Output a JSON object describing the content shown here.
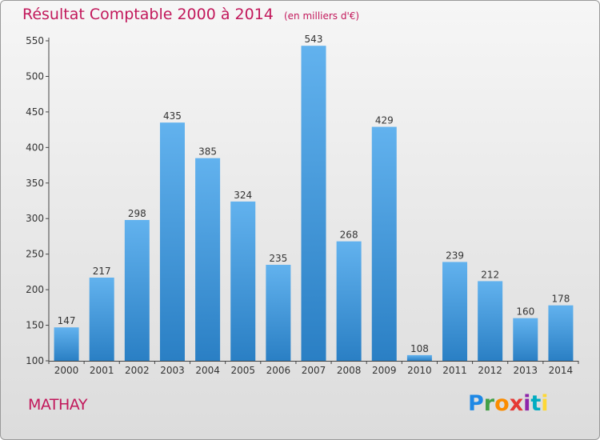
{
  "header": {
    "title": "Résultat Comptable 2000 à 2014",
    "unit": "(en milliers d'€)"
  },
  "commune": "MATHAY",
  "logo": {
    "text": "Proxiti"
  },
  "colors": {
    "title": "#c2185b",
    "bar_light": "#62b2ee",
    "bar_dark": "#2a7fc4",
    "axis": "#444444"
  },
  "chart_data": {
    "type": "bar",
    "title": "Résultat Comptable 2000 à 2014",
    "subtitle": "(en milliers d'€)",
    "categories": [
      "2000",
      "2001",
      "2002",
      "2003",
      "2004",
      "2005",
      "2006",
      "2007",
      "2008",
      "2009",
      "2010",
      "2011",
      "2012",
      "2013",
      "2014"
    ],
    "values": [
      147,
      217,
      298,
      435,
      385,
      324,
      235,
      543,
      268,
      429,
      108,
      239,
      212,
      160,
      178
    ],
    "ylim": [
      100,
      550
    ],
    "yticks": [
      100,
      150,
      200,
      250,
      300,
      350,
      400,
      450,
      500,
      550
    ],
    "xlabel": "",
    "ylabel": "",
    "grid": false
  }
}
